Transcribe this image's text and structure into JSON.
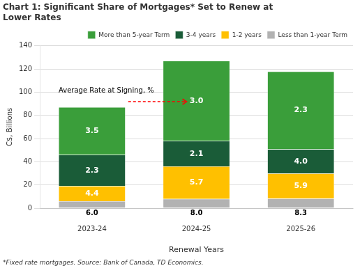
{
  "chart_data": {
    "type": "bar",
    "title": [
      "Chart 1: Significant Share of Mortgages* Set to Renew at",
      "Lower Rates"
    ],
    "xlabel": "Renewal Years",
    "ylabel": "C$, Billions",
    "footnote": "*Fixed rate mortgages. Source: Bank of Canada, TD Economics.",
    "annotation": "Average Rate at Signing, %",
    "categories": [
      "2023-24",
      "2024-25",
      "2025-26"
    ],
    "series": [
      {
        "name": "Less than 1-year Term",
        "color": "#b2b2b2",
        "values": [
          6.0,
          8.0,
          8.3
        ],
        "rate_labels": [
          "6.0",
          "8.0",
          "8.3"
        ]
      },
      {
        "name": "1-2 years",
        "color": "#ffc000",
        "values": [
          13.0,
          28.0,
          21.5
        ],
        "rate_labels": [
          "4.4",
          "5.7",
          "5.9"
        ]
      },
      {
        "name": "3-4 years",
        "color": "#1a5c38",
        "values": [
          27.0,
          22.0,
          21.0
        ],
        "rate_labels": [
          "2.3",
          "2.1",
          "4.0"
        ]
      },
      {
        "name": "More than 5-year Term",
        "color": "#3a9e3a",
        "values": [
          41.0,
          69.0,
          67.0
        ],
        "rate_labels": [
          "3.5",
          "3.0",
          "2.3"
        ]
      }
    ],
    "stacked": true,
    "ylim": [
      0,
      140
    ],
    "yticks": [
      0,
      20,
      40,
      60,
      80,
      100,
      120,
      140
    ],
    "grid": true,
    "legend": "top"
  }
}
